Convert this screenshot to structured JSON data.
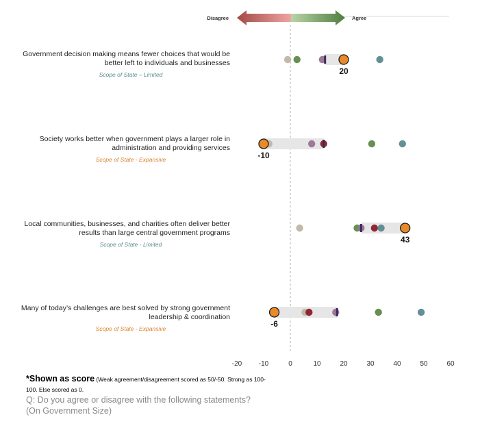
{
  "header": {
    "disagree_label": "Disagree",
    "agree_label": "Agree",
    "disagree_color": "#d9534f",
    "agree_color": "#4e7d3e"
  },
  "statements": [
    {
      "text": "Government decision making means fewer choices that would be better left to individuals and businesses",
      "tag": "Scope of State – Limited",
      "tag_color": "#5b8a91"
    },
    {
      "text": "Society works better when government plays a larger role in administration and providing services",
      "tag": "Scope of State - Expansive",
      "tag_color": "#d9822b"
    },
    {
      "text": "Local communities, businesses, and charities often deliver better results than large central government programs",
      "tag": "Scope of State - Limited",
      "tag_color": "#5b8a91"
    },
    {
      "text": "Many of today’s challenges are best solved by strong government leadership & coordination",
      "tag": "Scope of State - Expansive",
      "tag_color": "#d9822b"
    }
  ],
  "footnote": {
    "main": "*Shown as score",
    "detail": " (Weak agreement/disagreement scored as 50/-50. Strong as 100-100. Else scored as 0."
  },
  "question": {
    "line1": "Q: Do you agree or disagree with the following statements?",
    "line2": "(On Government Size)"
  },
  "chart_data": {
    "type": "dot",
    "x_axis": {
      "min": -20,
      "max": 60,
      "ticks": [
        -20,
        -10,
        0,
        10,
        20,
        30,
        40,
        50,
        60
      ],
      "tick_labels": [
        "-20",
        "-10",
        "0",
        "10",
        "20",
        "30",
        "40",
        "50",
        "60"
      ]
    },
    "highlight_color": "#e8892a",
    "rows": [
      {
        "highlight": 20,
        "highlight_label": "20",
        "marker": 13,
        "range": [
          13,
          20
        ],
        "points": [
          {
            "value": -1,
            "color": "#bfb5a5"
          },
          {
            "value": 2.5,
            "color": "#5e8a4a"
          },
          {
            "value": 12,
            "color": "#9a7290"
          },
          {
            "value": 33.5,
            "color": "#5b8a91"
          }
        ]
      },
      {
        "highlight": -10,
        "highlight_label": "-10",
        "marker": 12.5,
        "range": [
          -10,
          12.5
        ],
        "points": [
          {
            "value": -8,
            "color": "#bfb5a5"
          },
          {
            "value": 8,
            "color": "#9a7290"
          },
          {
            "value": 12.5,
            "color": "#8b1e2a"
          },
          {
            "value": 30.5,
            "color": "#5e8a4a"
          },
          {
            "value": 42,
            "color": "#5b8a91"
          }
        ]
      },
      {
        "highlight": 43,
        "highlight_label": "43",
        "marker": 26.5,
        "range": [
          26.5,
          43
        ],
        "points": [
          {
            "value": 3.5,
            "color": "#bfb5a5"
          },
          {
            "value": 25,
            "color": "#5e8a4a"
          },
          {
            "value": 26.5,
            "color": "#9a7290"
          },
          {
            "value": 31.5,
            "color": "#8b1e2a"
          },
          {
            "value": 34,
            "color": "#5b8a91"
          }
        ]
      },
      {
        "highlight": -6,
        "highlight_label": "-6",
        "marker": 17.5,
        "range": [
          -6,
          17.5
        ],
        "points": [
          {
            "value": 5.5,
            "color": "#bfb5a5"
          },
          {
            "value": 7,
            "color": "#8b1e2a"
          },
          {
            "value": 17,
            "color": "#9a7290"
          },
          {
            "value": 33,
            "color": "#5e8a4a"
          },
          {
            "value": 49,
            "color": "#5b8a91"
          }
        ]
      }
    ]
  }
}
